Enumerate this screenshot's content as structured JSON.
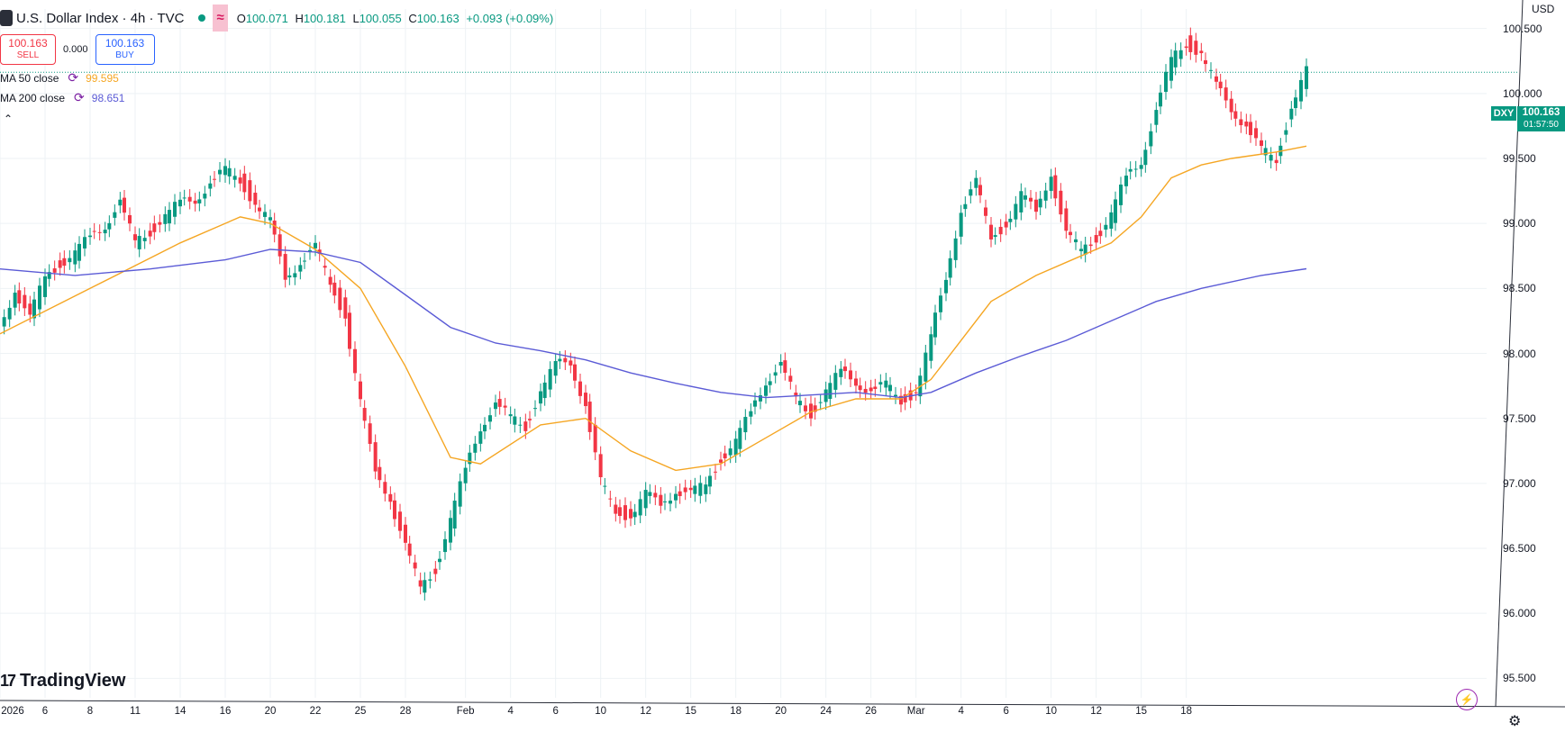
{
  "header": {
    "title": "U.S. Dollar Index · 4h · TVC",
    "badge_icon": "wave-icon",
    "ohlc": {
      "o_label": "O",
      "o": "100.071",
      "h_label": "H",
      "h": "100.181",
      "l_label": "L",
      "l": "100.055",
      "c_label": "C",
      "c": "100.163",
      "change": "+0.093 (+0.09%)"
    }
  },
  "trade": {
    "sell_price": "100.163",
    "sell_label": "SELL",
    "spread": "0.000",
    "buy_price": "100.163",
    "buy_label": "BUY"
  },
  "indicators": [
    {
      "label": "MA 50 close",
      "value": "99.595",
      "color": "#f5a623"
    },
    {
      "label": "MA 200 close",
      "value": "98.651",
      "color": "#5b5bd6"
    }
  ],
  "logo": {
    "text": "TradingView",
    "mark": "17"
  },
  "price_axis": {
    "unit": "USD",
    "labels": [
      "100.500",
      "100.000",
      "99.500",
      "99.000",
      "98.500",
      "98.000",
      "97.500",
      "97.000",
      "96.500",
      "96.000",
      "95.500"
    ]
  },
  "time_axis": {
    "labels": [
      "2026",
      "6",
      "8",
      "11",
      "14",
      "16",
      "20",
      "22",
      "25",
      "28",
      "Feb",
      "4",
      "6",
      "10",
      "12",
      "15",
      "18",
      "20",
      "24",
      "26",
      "Mar",
      "4",
      "6",
      "10",
      "12",
      "15",
      "18"
    ]
  },
  "last_price": {
    "symbol": "DXY",
    "price": "100.163",
    "countdown": "01:57:50"
  },
  "colors": {
    "up": "#089981",
    "down": "#f23645",
    "ma50": "#f5a623",
    "ma200": "#5b5bd6"
  },
  "chart_data": {
    "type": "candlestick",
    "title": "U.S. Dollar Index · 4h · TVC",
    "ylabel": "USD",
    "ylim": [
      95.35,
      100.65
    ],
    "xlim": [
      0,
      99
    ],
    "x_ticks": [
      {
        "x": 0,
        "label": "2026"
      },
      {
        "x": 3,
        "label": "6"
      },
      {
        "x": 6,
        "label": "8"
      },
      {
        "x": 9,
        "label": "11"
      },
      {
        "x": 12,
        "label": "14"
      },
      {
        "x": 15,
        "label": "16"
      },
      {
        "x": 18,
        "label": "20"
      },
      {
        "x": 21,
        "label": "22"
      },
      {
        "x": 24,
        "label": "25"
      },
      {
        "x": 27,
        "label": "28"
      },
      {
        "x": 31,
        "label": "Feb"
      },
      {
        "x": 34,
        "label": "4"
      },
      {
        "x": 37,
        "label": "6"
      },
      {
        "x": 40,
        "label": "10"
      },
      {
        "x": 43,
        "label": "12"
      },
      {
        "x": 46,
        "label": "15"
      },
      {
        "x": 49,
        "label": "18"
      },
      {
        "x": 52,
        "label": "20"
      },
      {
        "x": 55,
        "label": "24"
      },
      {
        "x": 58,
        "label": "26"
      },
      {
        "x": 61,
        "label": "Mar"
      },
      {
        "x": 64,
        "label": "4"
      },
      {
        "x": 67,
        "label": "6"
      },
      {
        "x": 70,
        "label": "10"
      },
      {
        "x": 73,
        "label": "12"
      },
      {
        "x": 76,
        "label": "15"
      },
      {
        "x": 79,
        "label": "18"
      }
    ],
    "close_path": [
      [
        0,
        98.2
      ],
      [
        1,
        98.5
      ],
      [
        2,
        98.25
      ],
      [
        3,
        98.6
      ],
      [
        4,
        98.7
      ],
      [
        5,
        98.75
      ],
      [
        6,
        98.9
      ],
      [
        7,
        99.0
      ],
      [
        8,
        99.15
      ],
      [
        9,
        98.85
      ],
      [
        10,
        98.95
      ],
      [
        11,
        99.05
      ],
      [
        12,
        99.15
      ],
      [
        13,
        99.2
      ],
      [
        14,
        99.3
      ],
      [
        15,
        99.4
      ],
      [
        16,
        99.35
      ],
      [
        17,
        99.15
      ],
      [
        18,
        99.0
      ],
      [
        19,
        98.6
      ],
      [
        20,
        98.7
      ],
      [
        21,
        98.8
      ],
      [
        22,
        98.55
      ],
      [
        23,
        98.3
      ],
      [
        24,
        97.6
      ],
      [
        25,
        97.1
      ],
      [
        26,
        96.9
      ],
      [
        27,
        96.5
      ],
      [
        28,
        96.2
      ],
      [
        29,
        96.35
      ],
      [
        30,
        96.7
      ],
      [
        31,
        97.1
      ],
      [
        32,
        97.45
      ],
      [
        33,
        97.6
      ],
      [
        34,
        97.5
      ],
      [
        35,
        97.45
      ],
      [
        36,
        97.7
      ],
      [
        37,
        97.9
      ],
      [
        38,
        97.95
      ],
      [
        39,
        97.6
      ],
      [
        40,
        97.0
      ],
      [
        41,
        96.8
      ],
      [
        42,
        96.75
      ],
      [
        43,
        96.9
      ],
      [
        44,
        96.85
      ],
      [
        45,
        96.95
      ],
      [
        46,
        96.9
      ],
      [
        47,
        97.0
      ],
      [
        48,
        97.2
      ],
      [
        49,
        97.3
      ],
      [
        50,
        97.55
      ],
      [
        51,
        97.8
      ],
      [
        52,
        97.9
      ],
      [
        53,
        97.65
      ],
      [
        54,
        97.55
      ],
      [
        55,
        97.7
      ],
      [
        56,
        97.85
      ],
      [
        57,
        97.8
      ],
      [
        58,
        97.7
      ],
      [
        59,
        97.75
      ],
      [
        60,
        97.65
      ],
      [
        61,
        97.7
      ],
      [
        62,
        98.1
      ],
      [
        63,
        98.6
      ],
      [
        64,
        99.1
      ],
      [
        65,
        99.3
      ],
      [
        66,
        98.9
      ],
      [
        67,
        99.0
      ],
      [
        68,
        99.2
      ],
      [
        69,
        99.1
      ],
      [
        70,
        99.4
      ],
      [
        71,
        98.9
      ],
      [
        72,
        98.8
      ],
      [
        73,
        98.9
      ],
      [
        74,
        99.05
      ],
      [
        75,
        99.35
      ],
      [
        76,
        99.5
      ],
      [
        77,
        99.85
      ],
      [
        78,
        100.25
      ],
      [
        79,
        100.4
      ],
      [
        80,
        100.3
      ],
      [
        81,
        100.05
      ],
      [
        82,
        99.9
      ],
      [
        83,
        99.75
      ],
      [
        84,
        99.55
      ],
      [
        85,
        99.5
      ],
      [
        86,
        99.9
      ],
      [
        87,
        100.16
      ]
    ],
    "series": [
      {
        "name": "MA 50 close",
        "color": "#f5a623",
        "points": [
          [
            0,
            98.15
          ],
          [
            6,
            98.5
          ],
          [
            12,
            98.85
          ],
          [
            16,
            99.05
          ],
          [
            18,
            99.0
          ],
          [
            21,
            98.8
          ],
          [
            24,
            98.5
          ],
          [
            27,
            97.9
          ],
          [
            30,
            97.2
          ],
          [
            32,
            97.15
          ],
          [
            36,
            97.45
          ],
          [
            39,
            97.5
          ],
          [
            42,
            97.25
          ],
          [
            45,
            97.1
          ],
          [
            48,
            97.15
          ],
          [
            51,
            97.35
          ],
          [
            54,
            97.55
          ],
          [
            57,
            97.65
          ],
          [
            60,
            97.65
          ],
          [
            62,
            97.8
          ],
          [
            64,
            98.1
          ],
          [
            66,
            98.4
          ],
          [
            69,
            98.6
          ],
          [
            72,
            98.75
          ],
          [
            74,
            98.85
          ],
          [
            76,
            99.05
          ],
          [
            78,
            99.35
          ],
          [
            80,
            99.45
          ],
          [
            82,
            99.5
          ],
          [
            85,
            99.55
          ],
          [
            87,
            99.595
          ]
        ]
      },
      {
        "name": "MA 200 close",
        "color": "#5b5bd6",
        "points": [
          [
            0,
            98.65
          ],
          [
            5,
            98.6
          ],
          [
            10,
            98.65
          ],
          [
            15,
            98.72
          ],
          [
            18,
            98.8
          ],
          [
            21,
            98.78
          ],
          [
            24,
            98.7
          ],
          [
            27,
            98.45
          ],
          [
            30,
            98.2
          ],
          [
            33,
            98.08
          ],
          [
            36,
            98.02
          ],
          [
            39,
            97.95
          ],
          [
            42,
            97.85
          ],
          [
            45,
            97.77
          ],
          [
            48,
            97.7
          ],
          [
            51,
            97.66
          ],
          [
            54,
            97.68
          ],
          [
            57,
            97.7
          ],
          [
            60,
            97.66
          ],
          [
            62,
            97.7
          ],
          [
            65,
            97.85
          ],
          [
            68,
            97.98
          ],
          [
            71,
            98.1
          ],
          [
            74,
            98.25
          ],
          [
            77,
            98.4
          ],
          [
            80,
            98.5
          ],
          [
            84,
            98.6
          ],
          [
            87,
            98.651
          ]
        ]
      }
    ]
  }
}
